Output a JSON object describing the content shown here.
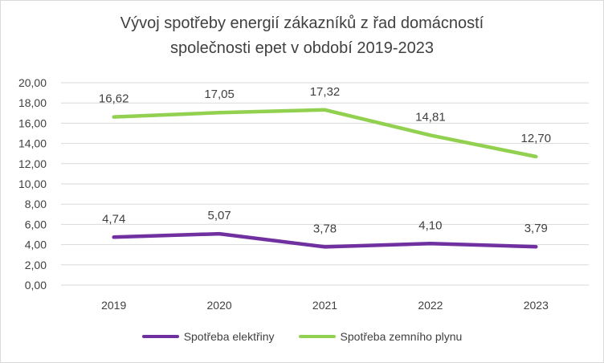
{
  "chart_data": {
    "type": "line",
    "title_lines": [
      "Vývoj spotřeby energií zákazníků z řad domácností",
      "společnosti epet v období 2019-2023"
    ],
    "categories": [
      "2019",
      "2020",
      "2021",
      "2022",
      "2023"
    ],
    "ylim": [
      0,
      20
    ],
    "yticks": [
      "0,00",
      "2,00",
      "4,00",
      "6,00",
      "8,00",
      "10,00",
      "12,00",
      "14,00",
      "16,00",
      "18,00",
      "20,00"
    ],
    "grid": true,
    "legend_position": "bottom",
    "series": [
      {
        "name": "Spotřeba elektřiny",
        "color": "#7030a0",
        "values": [
          4.74,
          5.07,
          3.78,
          4.1,
          3.79
        ],
        "labels": [
          "4,74",
          "5,07",
          "3,78",
          "4,10",
          "3,79"
        ]
      },
      {
        "name": "Spotřeba zemního plynu",
        "color": "#92d050",
        "values": [
          16.62,
          17.05,
          17.32,
          14.81,
          12.7
        ],
        "labels": [
          "16,62",
          "17,05",
          "17,32",
          "14,81",
          "12,70"
        ]
      }
    ]
  }
}
